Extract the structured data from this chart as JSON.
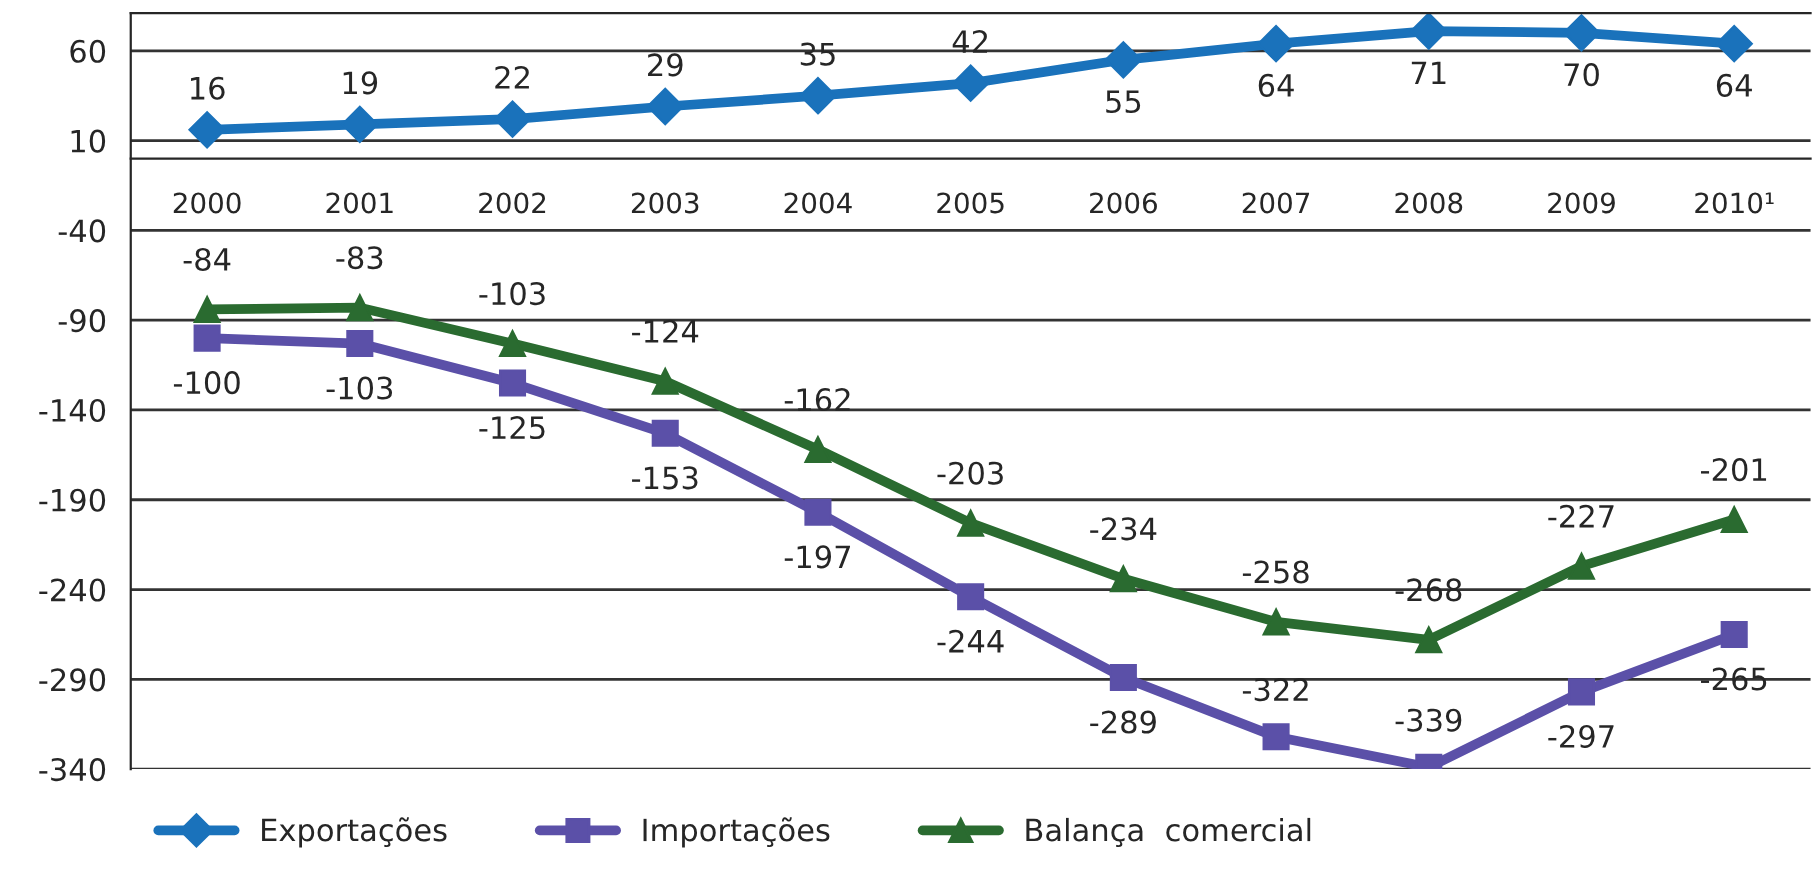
{
  "chart_data": {
    "type": "line",
    "categories": [
      "2000",
      "2001",
      "2002",
      "2003",
      "2004",
      "2005",
      "2006",
      "2007",
      "2008",
      "2009",
      "2010¹"
    ],
    "series": [
      {
        "name": "Exportações",
        "color": "#1a72bb",
        "marker": "diamond",
        "values": [
          16,
          19,
          22,
          29,
          35,
          42,
          55,
          64,
          71,
          70,
          64
        ]
      },
      {
        "name": "Importações",
        "color": "#5b50a8",
        "marker": "square",
        "values": [
          -100,
          -103,
          -125,
          -153,
          -197,
          -244,
          -289,
          -322,
          -339,
          -297,
          -265
        ]
      },
      {
        "name": "Balança  comercial",
        "color": "#2a6b30",
        "marker": "triangle",
        "values": [
          -84,
          -83,
          -103,
          -124,
          -162,
          -203,
          -234,
          -258,
          -268,
          -227,
          -201
        ]
      }
    ],
    "ylim": [
      -340,
      81
    ],
    "yticks": [
      60,
      10,
      -40,
      -90,
      -140,
      -190,
      -240,
      -290,
      -340
    ],
    "grid": "y",
    "data_labels": true,
    "legend": "bottom",
    "line_style": "solid"
  }
}
